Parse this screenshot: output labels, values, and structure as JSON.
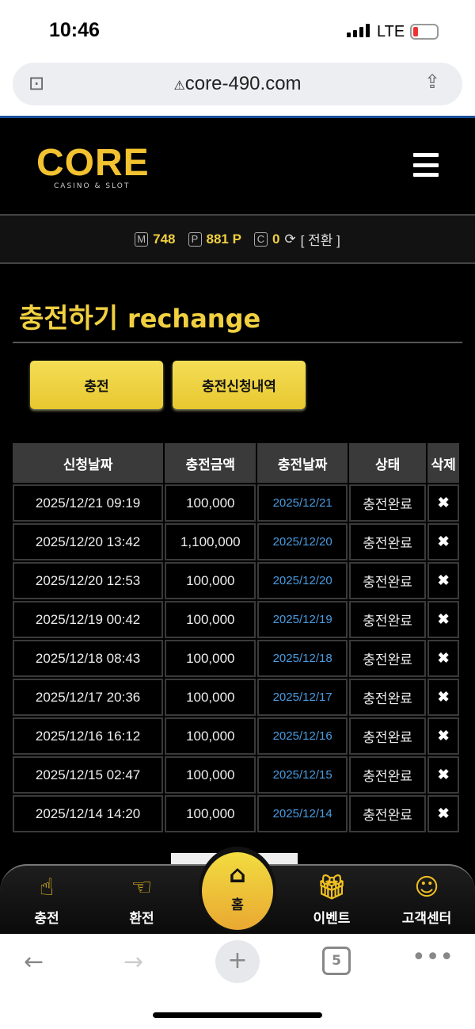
{
  "status": {
    "time": "10:46",
    "network": "LTE"
  },
  "browser": {
    "url": "core-490.com",
    "tab_count": "5"
  },
  "header": {
    "logo_main": "CORE",
    "logo_sub": "CASINO & SLOT"
  },
  "balance": {
    "m_label": "M",
    "m_value": "748",
    "p_label": "P",
    "p_value": "881 P",
    "c_label": "C",
    "c_value": "0",
    "switch_label": "[ 전환 ]"
  },
  "page": {
    "title_ko": "충전하기",
    "title_en": "rechange"
  },
  "buttons": {
    "charge": "충전",
    "history": "충전신청내역"
  },
  "table": {
    "headers": [
      "신청날짜",
      "충전금액",
      "충전날짜",
      "상태",
      "삭제"
    ],
    "rows": [
      [
        "2025/12/21 09:19",
        "100,000",
        "2025/12/21",
        "충전완료"
      ],
      [
        "2025/12/20 13:42",
        "1,100,000",
        "2025/12/20",
        "충전완료"
      ],
      [
        "2025/12/20 12:53",
        "100,000",
        "2025/12/20",
        "충전완료"
      ],
      [
        "2025/12/19 00:42",
        "100,000",
        "2025/12/19",
        "충전완료"
      ],
      [
        "2025/12/18 08:43",
        "100,000",
        "2025/12/18",
        "충전완료"
      ],
      [
        "2025/12/17 20:36",
        "100,000",
        "2025/12/17",
        "충전완료"
      ],
      [
        "2025/12/16 16:12",
        "100,000",
        "2025/12/16",
        "충전완료"
      ],
      [
        "2025/12/15 02:47",
        "100,000",
        "2025/12/15",
        "충전완료"
      ],
      [
        "2025/12/14 14:20",
        "100,000",
        "2025/12/14",
        "충전완료"
      ]
    ],
    "delete_icon": "✖"
  },
  "bottom_nav": {
    "charge": "충전",
    "exchange": "환전",
    "home": "홈",
    "event": "이벤트",
    "support": "고객센터"
  },
  "colors": {
    "accent": "#f0d040",
    "link": "#4a9be0",
    "brand_blue": "#1a4f9a"
  }
}
